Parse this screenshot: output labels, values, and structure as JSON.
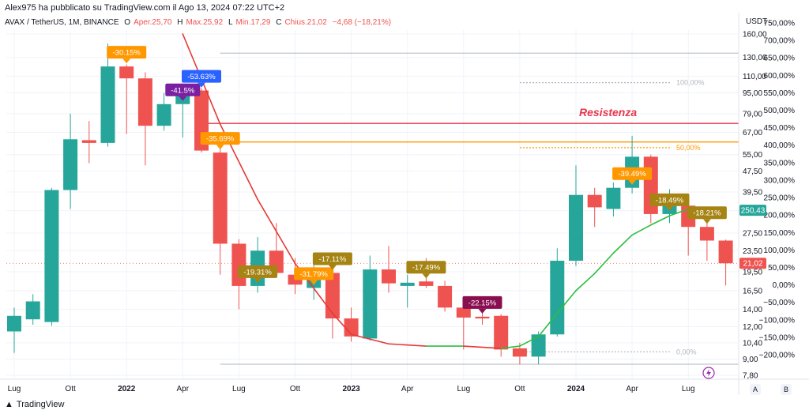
{
  "published_by": "Alex975 ha pubblicato su TradingView.com il Ago 13, 2024 07:22 UTC+2",
  "symbol": {
    "name": "AVAX / TetherUS, 1M, BINANCE",
    "open_label": "O",
    "open_value": "Aper.25,70",
    "high_label": "H",
    "high_value": "Max.25,92",
    "low_label": "L",
    "low_value": "Min.17,29",
    "close_label": "C",
    "close_value": "Chius.21,02",
    "change": "−4,68 (−18,21%)"
  },
  "axis_currency": "USDT",
  "footer": {
    "brand": "TradingView",
    "axis_a": "A",
    "axis_b": "B"
  },
  "colors": {
    "up": "#26a69a",
    "down": "#ef5350",
    "resistance": "#e8364d",
    "fib_50": "#ff9800",
    "ma_up": "#2ebd3e",
    "ma_down": "#e53935"
  },
  "chart_data": {
    "type": "candlestick",
    "scale": "log",
    "ylim": [
      7.8,
      160
    ],
    "x_tick_labels": [
      "Lug",
      "Ott",
      "2022",
      "Apr",
      "Lug",
      "Ott",
      "2023",
      "Apr",
      "Lug",
      "Ott",
      "2024",
      "Apr",
      "Lug"
    ],
    "y_tick_labels": [
      "160,00",
      "130,00",
      "110,00",
      "95,00",
      "79,00",
      "67,00",
      "55,00",
      "47,50",
      "39,50",
      "33,50",
      "27,50",
      "23,50",
      "19,50",
      "16,50",
      "14,00",
      "12,00",
      "10,40",
      "9,00",
      "7,80"
    ],
    "y2_tick_labels": [
      "750,00%",
      "700,00%",
      "650,00%",
      "600,00%",
      "550,00%",
      "500,00%",
      "450,00%",
      "400,00%",
      "350,00%",
      "300,00%",
      "250,00%",
      "200,00%",
      "150,00%",
      "100,00%",
      "50,00%",
      "0,00%",
      "−50,00%",
      "−100,00%",
      "−150,00%",
      "−200,00%"
    ],
    "candles": [
      {
        "month": "2021-06",
        "o": 11.5,
        "h": 14.2,
        "l": 9.5,
        "c": 13.2
      },
      {
        "month": "2021-07",
        "o": 12.8,
        "h": 16.0,
        "l": 12.2,
        "c": 15.0
      },
      {
        "month": "2021-08",
        "o": 12.5,
        "h": 41.0,
        "l": 12.1,
        "c": 40.2
      },
      {
        "month": "2021-09",
        "o": 40.2,
        "h": 79.0,
        "l": 34.0,
        "c": 63.0
      },
      {
        "month": "2021-10",
        "o": 62.5,
        "h": 74.0,
        "l": 51.0,
        "c": 61.0
      },
      {
        "month": "2021-11",
        "o": 61.0,
        "h": 147.0,
        "l": 59.0,
        "c": 120.0
      },
      {
        "month": "2021-12",
        "o": 120.0,
        "h": 122.0,
        "l": 66.0,
        "c": 108.0
      },
      {
        "month": "2022-01",
        "o": 108.0,
        "h": 114.0,
        "l": 50.0,
        "c": 71.0
      },
      {
        "month": "2022-02",
        "o": 71.0,
        "h": 95.0,
        "l": 68.0,
        "c": 86.0
      },
      {
        "month": "2022-03",
        "o": 86.0,
        "h": 99.0,
        "l": 64.0,
        "c": 97.0
      },
      {
        "month": "2022-04",
        "o": 97.0,
        "h": 99.0,
        "l": 56.0,
        "c": 57.0
      },
      {
        "month": "2022-05",
        "o": 56.0,
        "h": 65.0,
        "l": 19.0,
        "c": 25.0
      },
      {
        "month": "2022-06",
        "o": 25.0,
        "h": 26.0,
        "l": 14.0,
        "c": 17.2
      },
      {
        "month": "2022-07",
        "o": 17.2,
        "h": 26.5,
        "l": 16.2,
        "c": 23.5
      },
      {
        "month": "2022-08",
        "o": 23.5,
        "h": 30.0,
        "l": 19.5,
        "c": 19.3
      },
      {
        "month": "2022-09",
        "o": 19.0,
        "h": 22.0,
        "l": 16.0,
        "c": 17.4
      },
      {
        "month": "2022-10",
        "o": 16.9,
        "h": 21.5,
        "l": 15.2,
        "c": 19.5
      },
      {
        "month": "2022-11",
        "o": 19.3,
        "h": 21.0,
        "l": 10.8,
        "c": 12.9
      },
      {
        "month": "2022-12",
        "o": 12.9,
        "h": 14.2,
        "l": 10.5,
        "c": 11.0
      },
      {
        "month": "2023-01",
        "o": 10.8,
        "h": 22.5,
        "l": 10.6,
        "c": 19.9
      },
      {
        "month": "2023-02",
        "o": 19.9,
        "h": 24.5,
        "l": 16.2,
        "c": 17.6
      },
      {
        "month": "2023-03",
        "o": 17.2,
        "h": 19.0,
        "l": 14.2,
        "c": 17.7
      },
      {
        "month": "2023-04",
        "o": 17.9,
        "h": 22.0,
        "l": 16.9,
        "c": 17.2
      },
      {
        "month": "2023-05",
        "o": 17.2,
        "h": 18.0,
        "l": 13.7,
        "c": 14.2
      },
      {
        "month": "2023-06",
        "o": 14.2,
        "h": 14.9,
        "l": 9.8,
        "c": 13.0
      },
      {
        "month": "2023-07",
        "o": 13.1,
        "h": 14.9,
        "l": 12.2,
        "c": 12.9
      },
      {
        "month": "2023-08",
        "o": 13.2,
        "h": 13.4,
        "l": 9.2,
        "c": 9.8
      },
      {
        "month": "2023-09",
        "o": 9.9,
        "h": 10.4,
        "l": 8.6,
        "c": 9.2
      },
      {
        "month": "2023-10",
        "o": 9.2,
        "h": 11.5,
        "l": 8.6,
        "c": 11.2
      },
      {
        "month": "2023-11",
        "o": 11.2,
        "h": 24.0,
        "l": 11.0,
        "c": 21.5
      },
      {
        "month": "2023-12",
        "o": 21.5,
        "h": 50.0,
        "l": 20.5,
        "c": 38.5
      },
      {
        "month": "2024-01",
        "o": 38.5,
        "h": 41.0,
        "l": 29.0,
        "c": 34.5
      },
      {
        "month": "2024-02",
        "o": 34.0,
        "h": 43.0,
        "l": 31.8,
        "c": 41.0
      },
      {
        "month": "2024-03",
        "o": 41.0,
        "h": 65.0,
        "l": 39.0,
        "c": 54.0
      },
      {
        "month": "2024-04",
        "o": 54.0,
        "h": 55.0,
        "l": 30.0,
        "c": 32.5
      },
      {
        "month": "2024-05",
        "o": 32.5,
        "h": 40.5,
        "l": 30.0,
        "c": 35.0
      },
      {
        "month": "2024-06",
        "o": 35.0,
        "h": 36.0,
        "l": 22.5,
        "c": 29.0
      },
      {
        "month": "2024-07",
        "o": 29.0,
        "h": 33.0,
        "l": 21.5,
        "c": 25.7
      },
      {
        "month": "2024-08",
        "o": 25.7,
        "h": 25.92,
        "l": 17.29,
        "c": 21.02
      }
    ],
    "moving_average": [
      {
        "month": "2022-03",
        "value": 160
      },
      {
        "month": "2022-05",
        "value": 72
      },
      {
        "month": "2022-07",
        "value": 37
      },
      {
        "month": "2022-09",
        "value": 21
      },
      {
        "month": "2022-11",
        "value": 13.5
      },
      {
        "month": "2022-12",
        "value": 11.2
      },
      {
        "month": "2023-02",
        "value": 10.3
      },
      {
        "month": "2023-04",
        "value": 10.1
      },
      {
        "month": "2023-06",
        "value": 10.1
      },
      {
        "month": "2023-08",
        "value": 9.9
      },
      {
        "month": "2023-09",
        "value": 10.1
      },
      {
        "month": "2023-10",
        "value": 11.0
      },
      {
        "month": "2023-11",
        "value": 13.5
      },
      {
        "month": "2023-12",
        "value": 16.5
      },
      {
        "month": "2024-01",
        "value": 19.2
      },
      {
        "month": "2024-02",
        "value": 23.0
      },
      {
        "month": "2024-03",
        "value": 27.0
      },
      {
        "month": "2024-04",
        "value": 29.5
      },
      {
        "month": "2024-05",
        "value": 32.0
      },
      {
        "month": "2024-06",
        "value": 34.0
      },
      {
        "month": "2024-07",
        "value": 34.5
      },
      {
        "month": "2024-08",
        "value": 33.6
      }
    ],
    "fib_levels": [
      {
        "label": "100,00%",
        "value": 104.0,
        "color": "#b2b5be"
      },
      {
        "label": "50,00%",
        "value": 58.5,
        "color": "#ff9800"
      },
      {
        "label": "0,00%",
        "value": 9.6,
        "color": "#b2b5be"
      }
    ],
    "horizontal_lines": [
      {
        "name": "resistance",
        "value": 72.5,
        "color": "#e8364d",
        "label": "Resistenza"
      },
      {
        "name": "orange",
        "value": 61.5,
        "color": "#ff9800"
      }
    ],
    "callouts": [
      {
        "month": "2021-12",
        "text": "-30.15%",
        "color": "#ff9800"
      },
      {
        "month": "2022-03",
        "text": "-41.5%",
        "color": "#7b1fa2"
      },
      {
        "month": "2022-04",
        "text": "-53.63%",
        "color": "#2962ff"
      },
      {
        "month": "2022-05",
        "text": "-35.69%",
        "color": "#ff9800"
      },
      {
        "month": "2022-07",
        "text": "-19.31%",
        "color": "#a58413"
      },
      {
        "month": "2022-10",
        "text": "-31.79%",
        "color": "#ff9800"
      },
      {
        "month": "2022-11",
        "text": "-17.11%",
        "color": "#a58413"
      },
      {
        "month": "2023-04",
        "text": "-17.49%",
        "color": "#a58413"
      },
      {
        "month": "2023-07",
        "text": "-22.15%",
        "color": "#880e4f"
      },
      {
        "month": "2024-03",
        "text": "-39.49%",
        "color": "#ff9800"
      },
      {
        "month": "2024-05",
        "text": "-18.49%",
        "color": "#a58413"
      },
      {
        "month": "2024-07",
        "text": "-18.21%",
        "color": "#a58413"
      }
    ],
    "current_price": {
      "value": 21.02,
      "label": "21,02",
      "color": "#ef5350"
    },
    "ma_price": {
      "value": 33.6,
      "label": "250,43",
      "color": "#26a69a"
    }
  }
}
